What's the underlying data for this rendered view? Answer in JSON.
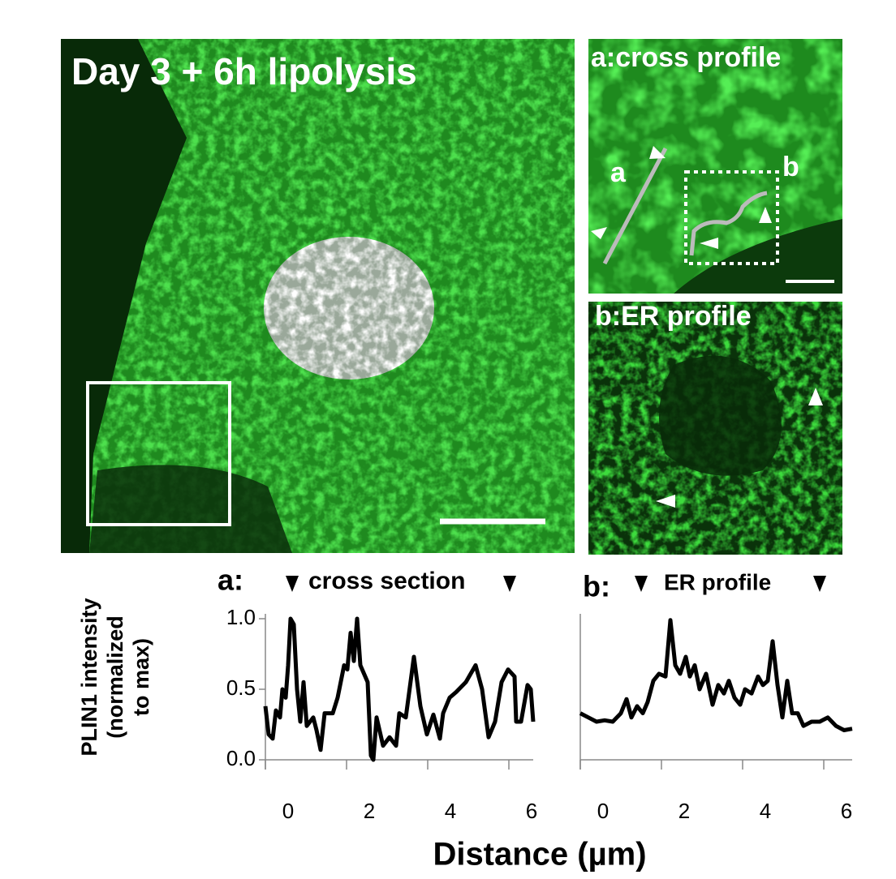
{
  "image_panels": {
    "main_title": "Day 3 + 6h lipolysis",
    "panel_a_title": "a:cross profile",
    "panel_a_line": "a",
    "panel_a_box": "b",
    "panel_b_title": "b:ER profile"
  },
  "figure": {
    "y_label": [
      "PLIN1 intensity",
      "(normalized",
      "to max)"
    ],
    "x_label": "Distance (µm)"
  },
  "chart_data": [
    {
      "type": "line",
      "panel": "a:",
      "title": "cross section",
      "color": "#000000",
      "xlim": [
        0,
        6.6
      ],
      "xticks": [
        0,
        2,
        4,
        6
      ],
      "ylim": [
        0,
        1.0
      ],
      "yticks": [
        {
          "value": 0,
          "label": "0.0"
        },
        0.5,
        {
          "value": 1.0,
          "label": "1.0"
        }
      ],
      "x": [
        0,
        0.08,
        0.18,
        0.26,
        0.36,
        0.42,
        0.5,
        0.56,
        0.62,
        0.7,
        0.78,
        0.86,
        0.94,
        1.02,
        1.18,
        1.26,
        1.36,
        1.46,
        1.66,
        1.78,
        1.94,
        2.02,
        2.1,
        2.18,
        2.26,
        2.34,
        2.52,
        2.6,
        2.66,
        2.74,
        2.9,
        3.06,
        3.22,
        3.3,
        3.46,
        3.66,
        3.82,
        3.98,
        4.14,
        4.3,
        4.38,
        4.54,
        4.7,
        4.94,
        5.18,
        5.34,
        5.5,
        5.66,
        5.82,
        5.98,
        6.14,
        6.18,
        6.3,
        6.46,
        6.54,
        6.6
      ],
      "values": [
        0.38,
        0.18,
        0.15,
        0.35,
        0.3,
        0.5,
        0.44,
        0.67,
        1.0,
        0.96,
        0.5,
        0.27,
        0.55,
        0.24,
        0.3,
        0.21,
        0.07,
        0.33,
        0.33,
        0.44,
        0.67,
        0.64,
        0.9,
        0.7,
        1.0,
        0.67,
        0.55,
        0.03,
        0.0,
        0.3,
        0.1,
        0.16,
        0.1,
        0.33,
        0.3,
        0.73,
        0.38,
        0.18,
        0.32,
        0.15,
        0.33,
        0.44,
        0.48,
        0.55,
        0.67,
        0.5,
        0.16,
        0.27,
        0.55,
        0.64,
        0.59,
        0.27,
        0.27,
        0.53,
        0.5,
        0.27
      ]
    },
    {
      "type": "line",
      "panel": "b:",
      "title": "ER profile",
      "color": "#000000",
      "xlim": [
        0,
        6.7
      ],
      "xticks": [
        0,
        2,
        4,
        6
      ],
      "ylim": [
        0,
        1.0
      ],
      "x": [
        0,
        0.2,
        0.4,
        0.6,
        0.8,
        1.0,
        1.14,
        1.26,
        1.4,
        1.54,
        1.66,
        1.8,
        1.94,
        2.1,
        2.22,
        2.34,
        2.46,
        2.6,
        2.7,
        2.82,
        2.94,
        3.1,
        3.26,
        3.4,
        3.54,
        3.66,
        3.8,
        3.94,
        4.06,
        4.22,
        4.38,
        4.5,
        4.62,
        4.74,
        4.86,
        4.98,
        5.1,
        5.22,
        5.36,
        5.5,
        5.7,
        5.9,
        6.1,
        6.3,
        6.5,
        6.7
      ],
      "values": [
        0.33,
        0.3,
        0.27,
        0.28,
        0.27,
        0.33,
        0.43,
        0.3,
        0.38,
        0.33,
        0.41,
        0.56,
        0.61,
        0.59,
        0.99,
        0.67,
        0.61,
        0.73,
        0.59,
        0.67,
        0.5,
        0.61,
        0.39,
        0.53,
        0.47,
        0.56,
        0.44,
        0.39,
        0.5,
        0.47,
        0.59,
        0.53,
        0.56,
        0.84,
        0.53,
        0.3,
        0.56,
        0.33,
        0.33,
        0.24,
        0.27,
        0.27,
        0.3,
        0.24,
        0.21,
        0.22
      ]
    }
  ]
}
